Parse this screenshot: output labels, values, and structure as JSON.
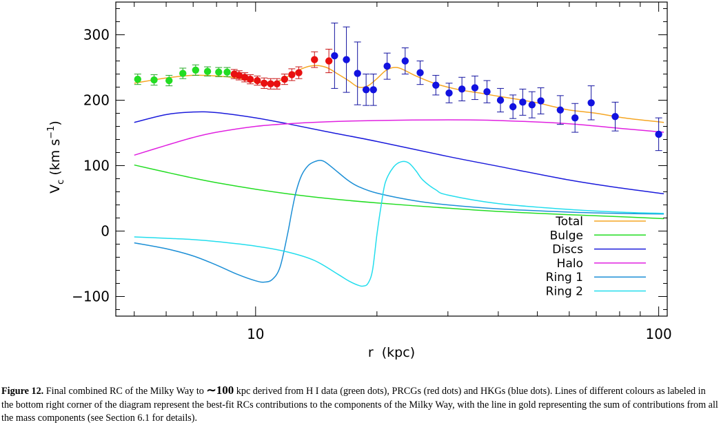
{
  "chart_data": {
    "type": "line",
    "title": "",
    "xlabel": "r  (kpc)",
    "ylabel_base": "V",
    "ylabel_sub": "c",
    "ylabel_unit_pre": " (km s",
    "ylabel_unit_sup": "−1",
    "ylabel_unit_post": ")",
    "xscale": "log",
    "xlim": [
      4.5,
      105
    ],
    "ylim": [
      -130,
      350
    ],
    "xticks_major": [
      {
        "value": 10,
        "label": "10"
      },
      {
        "value": 100,
        "label": "100"
      }
    ],
    "yticks_major": [
      {
        "value": -100,
        "label": "−100"
      },
      {
        "value": 0,
        "label": "0"
      },
      {
        "value": 100,
        "label": "100"
      },
      {
        "value": 200,
        "label": "200"
      },
      {
        "value": 300,
        "label": "300"
      }
    ],
    "legend_position": "bottom-right",
    "series": [
      {
        "name": "Total",
        "color": "#f5a623",
        "x": [
          5,
          6,
          7,
          8,
          9,
          10,
          11,
          12,
          13,
          14,
          15,
          16,
          17,
          18,
          19,
          20,
          21,
          22,
          23,
          25,
          28,
          32,
          36,
          40,
          45,
          50,
          55,
          60,
          70,
          80,
          90,
          100,
          103
        ],
        "y": [
          226,
          234,
          238,
          237,
          234,
          228,
          226,
          236,
          248,
          253,
          250,
          240,
          230,
          220,
          222,
          233,
          245,
          250,
          248,
          237,
          225,
          216,
          211,
          206,
          201,
          196,
          190,
          185,
          180,
          174,
          170,
          167,
          166
        ]
      },
      {
        "name": "Bulge",
        "color": "#22dd22",
        "x": [
          5,
          6,
          7,
          8,
          10,
          12,
          15,
          20,
          30,
          40,
          60,
          80,
          103
        ],
        "y": [
          101,
          90,
          81,
          74,
          64,
          57,
          50,
          43,
          35,
          30,
          25,
          22,
          19
        ]
      },
      {
        "name": "Discs",
        "color": "#1a1adb",
        "x": [
          5,
          6,
          7,
          8,
          10,
          12,
          15,
          20,
          30,
          40,
          60,
          80,
          103
        ],
        "y": [
          166,
          178,
          182,
          181,
          173,
          164,
          152,
          137,
          114,
          99,
          78,
          66,
          57
        ]
      },
      {
        "name": "Halo",
        "color": "#e020e0",
        "x": [
          5,
          6,
          7,
          8,
          10,
          12,
          15,
          20,
          30,
          40,
          60,
          80,
          103
        ],
        "y": [
          116,
          131,
          143,
          151,
          160,
          164,
          167,
          169,
          170,
          169,
          164,
          157,
          151
        ]
      },
      {
        "name": "Ring 1",
        "color": "#1c8fd6",
        "x": [
          5,
          6,
          7,
          8,
          9,
          10,
          10.5,
          11,
          11.5,
          12,
          12.3,
          12.6,
          13,
          13.5,
          14,
          14.5,
          15,
          16,
          17,
          18,
          20,
          25,
          30,
          40,
          60,
          80,
          103
        ],
        "y": [
          -18,
          -27,
          -38,
          -52,
          -66,
          -76,
          -78,
          -74,
          -55,
          -5,
          30,
          60,
          85,
          100,
          106,
          108,
          104,
          90,
          77,
          68,
          58,
          46,
          40,
          34,
          29,
          27,
          26
        ]
      },
      {
        "name": "Ring 2",
        "color": "#22dded",
        "x": [
          5,
          6,
          7,
          8,
          10,
          12,
          14,
          16,
          17,
          18,
          18.5,
          19,
          19.5,
          20,
          20.5,
          21,
          22,
          23,
          24,
          25,
          26,
          28,
          30,
          40,
          60,
          80,
          103
        ],
        "y": [
          -9,
          -11,
          -13,
          -16,
          -23,
          -32,
          -45,
          -66,
          -76,
          -83,
          -84,
          -80,
          -60,
          -5,
          40,
          75,
          98,
          106,
          104,
          92,
          78,
          63,
          55,
          42,
          33,
          29,
          27
        ]
      }
    ],
    "scatter": [
      {
        "name": "H I",
        "color": "#22dd22",
        "err_color": "#22aa22",
        "points": [
          [
            5.1,
            232,
            8
          ],
          [
            5.6,
            231,
            8
          ],
          [
            6.1,
            230,
            8
          ],
          [
            6.6,
            241,
            8
          ],
          [
            7.1,
            246,
            8
          ],
          [
            7.6,
            244,
            7
          ],
          [
            8.1,
            243,
            7
          ],
          [
            8.5,
            243,
            7
          ]
        ]
      },
      {
        "name": "PRCGs",
        "color": "#e81010",
        "err_color": "#c81010",
        "points": [
          [
            8.85,
            240,
            7
          ],
          [
            9.1,
            238,
            7
          ],
          [
            9.4,
            235,
            7
          ],
          [
            9.7,
            232,
            7
          ],
          [
            10.1,
            230,
            7
          ],
          [
            10.5,
            226,
            8
          ],
          [
            10.9,
            225,
            8
          ],
          [
            11.3,
            225,
            8
          ],
          [
            11.8,
            232,
            8
          ],
          [
            12.3,
            239,
            9
          ],
          [
            12.8,
            242,
            9
          ],
          [
            14.0,
            262,
            12
          ],
          [
            15.2,
            260,
            18
          ]
        ]
      },
      {
        "name": "HKGs",
        "color": "#1212e0",
        "err_color": "#1212a0",
        "points": [
          [
            15.7,
            268,
            50
          ],
          [
            16.8,
            262,
            50
          ],
          [
            17.9,
            241,
            48
          ],
          [
            18.8,
            216,
            24
          ],
          [
            19.6,
            216,
            24
          ],
          [
            21.2,
            252,
            20
          ],
          [
            23.5,
            260,
            20
          ],
          [
            25.6,
            242,
            18
          ],
          [
            28.0,
            223,
            15
          ],
          [
            30.2,
            211,
            15
          ],
          [
            32.5,
            217,
            18
          ],
          [
            35.0,
            219,
            18
          ],
          [
            37.5,
            213,
            17
          ],
          [
            40.5,
            200,
            18
          ],
          [
            43.5,
            190,
            18
          ],
          [
            46.0,
            197,
            20
          ],
          [
            48.5,
            193,
            20
          ],
          [
            51.0,
            199,
            20
          ],
          [
            57.0,
            185,
            22
          ],
          [
            62.0,
            173,
            22
          ],
          [
            68.0,
            196,
            26
          ],
          [
            78.0,
            175,
            22
          ],
          [
            100.0,
            148,
            25
          ]
        ]
      }
    ]
  },
  "caption": {
    "label": "Figure 12.",
    "pre": " Final combined RC of the Milky Way to ",
    "approx": "∼100",
    "post": " kpc derived from H I data (green dots), PRCGs (red dots) and HKGs (blue dots). Lines of different colours as labeled in the bottom right corner of the diagram represent the best-fit RCs contributions to the components of the Milky Way, with the line in gold representing the sum of contributions from all the mass components (see Section 6.1 for details)."
  }
}
